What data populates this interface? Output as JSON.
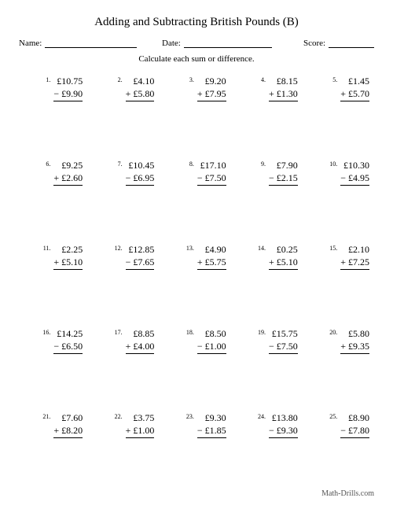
{
  "title": "Adding and Subtracting British Pounds (B)",
  "fields": {
    "name_label": "Name:",
    "date_label": "Date:",
    "score_label": "Score:"
  },
  "instructions": "Calculate each sum or difference.",
  "currency": "£",
  "problems": [
    {
      "n": "1.",
      "a": "10.75",
      "op": "−",
      "b": "9.90"
    },
    {
      "n": "2.",
      "a": "4.10",
      "op": "+",
      "b": "5.80"
    },
    {
      "n": "3.",
      "a": "9.20",
      "op": "+",
      "b": "7.95"
    },
    {
      "n": "4.",
      "a": "8.15",
      "op": "+",
      "b": "1.30"
    },
    {
      "n": "5.",
      "a": "1.45",
      "op": "+",
      "b": "5.70"
    },
    {
      "n": "6.",
      "a": "9.25",
      "op": "+",
      "b": "2.60"
    },
    {
      "n": "7.",
      "a": "10.45",
      "op": "−",
      "b": "6.95"
    },
    {
      "n": "8.",
      "a": "17.10",
      "op": "−",
      "b": "7.50"
    },
    {
      "n": "9.",
      "a": "7.90",
      "op": "−",
      "b": "2.15"
    },
    {
      "n": "10.",
      "a": "10.30",
      "op": "−",
      "b": "4.95"
    },
    {
      "n": "11.",
      "a": "2.25",
      "op": "+",
      "b": "5.10"
    },
    {
      "n": "12.",
      "a": "12.85",
      "op": "−",
      "b": "7.65"
    },
    {
      "n": "13.",
      "a": "4.90",
      "op": "+",
      "b": "5.75"
    },
    {
      "n": "14.",
      "a": "0.25",
      "op": "+",
      "b": "5.10"
    },
    {
      "n": "15.",
      "a": "2.10",
      "op": "+",
      "b": "7.25"
    },
    {
      "n": "16.",
      "a": "14.25",
      "op": "−",
      "b": "6.50"
    },
    {
      "n": "17.",
      "a": "8.85",
      "op": "+",
      "b": "4.00"
    },
    {
      "n": "18.",
      "a": "8.50",
      "op": "−",
      "b": "1.00"
    },
    {
      "n": "19.",
      "a": "15.75",
      "op": "−",
      "b": "7.50"
    },
    {
      "n": "20.",
      "a": "5.80",
      "op": "+",
      "b": "9.35"
    },
    {
      "n": "21.",
      "a": "7.60",
      "op": "+",
      "b": "8.20"
    },
    {
      "n": "22.",
      "a": "3.75",
      "op": "+",
      "b": "1.00"
    },
    {
      "n": "23.",
      "a": "9.30",
      "op": "−",
      "b": "1.85"
    },
    {
      "n": "24.",
      "a": "13.80",
      "op": "−",
      "b": "9.30"
    },
    {
      "n": "25.",
      "a": "8.90",
      "op": "−",
      "b": "7.80"
    }
  ],
  "footer": "Math-Drills.com"
}
